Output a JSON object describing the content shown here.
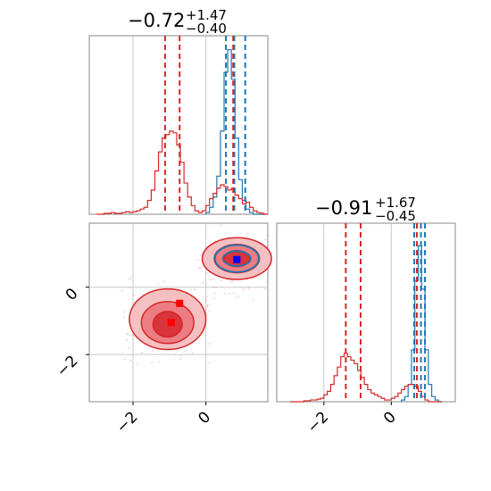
{
  "colors": {
    "red": "#d62728",
    "blue": "#1f77b4",
    "grid": "#c8c8c8",
    "axis": "#888888",
    "marker_blue": "#0000ff",
    "marker_red": "#ff0000"
  },
  "titles": {
    "p1": {
      "main": "−0.72",
      "sup": "+1.47",
      "sub": "−0.40"
    },
    "p2": {
      "main": "−0.91",
      "sup": "+1.67",
      "sub": "−0.45"
    }
  },
  "chart_data": {
    "type": "corner",
    "parameters": [
      {
        "ticks": [
          -2,
          0
        ],
        "tick_labels": [
          "−2",
          "0"
        ],
        "range": [
          -3.2,
          1.7
        ]
      },
      {
        "ticks": [
          -2,
          0
        ],
        "tick_labels": [
          "−2",
          "0"
        ],
        "range": [
          -3.4,
          1.9
        ]
      }
    ],
    "hist1": {
      "red_bins": [
        -3.0,
        -2.9,
        -2.8,
        -2.7,
        -2.6,
        -2.5,
        -2.4,
        -2.3,
        -2.2,
        -2.1,
        -2.0,
        -1.9,
        -1.8,
        -1.7,
        -1.6,
        -1.5,
        -1.4,
        -1.3,
        -1.2,
        -1.1,
        -1.0,
        -0.9,
        -0.8,
        -0.7,
        -0.6,
        -0.5,
        -0.4,
        -0.3,
        -0.2,
        -0.1,
        0.0,
        0.1,
        0.2,
        0.3,
        0.4,
        0.5,
        0.6,
        0.7,
        0.8,
        0.9,
        1.0,
        1.1,
        1.2,
        1.3,
        1.4,
        1.5,
        1.6
      ],
      "red_heights": [
        0,
        0,
        0.005,
        0.005,
        0.01,
        0.005,
        0.005,
        0.01,
        0.015,
        0.01,
        0.015,
        0.02,
        0.03,
        0.04,
        0.08,
        0.14,
        0.25,
        0.36,
        0.44,
        0.46,
        0.48,
        0.47,
        0.4,
        0.3,
        0.18,
        0.1,
        0.05,
        0.02,
        0.01,
        0.02,
        0.05,
        0.09,
        0.12,
        0.15,
        0.17,
        0.16,
        0.14,
        0.15,
        0.11,
        0.09,
        0.06,
        0.07,
        0.04,
        0.02,
        0.01,
        0.005,
        0
      ],
      "blue_bins": [
        0.0,
        0.1,
        0.2,
        0.3,
        0.4,
        0.5,
        0.6,
        0.7,
        0.8,
        0.9,
        1.0,
        1.1,
        1.2,
        1.3,
        1.4,
        1.5
      ],
      "blue_heights": [
        0.01,
        0.04,
        0.1,
        0.22,
        0.48,
        0.82,
        0.95,
        0.78,
        0.44,
        0.2,
        0.08,
        0.03,
        0.01,
        0,
        0,
        0
      ],
      "red_quantiles": [
        -1.12,
        -0.72,
        0.75
      ],
      "blue_quantiles": [
        0.55,
        0.78,
        1.08
      ]
    },
    "hist2": {
      "red_bins": [
        -3.0,
        -2.9,
        -2.8,
        -2.7,
        -2.6,
        -2.5,
        -2.4,
        -2.3,
        -2.2,
        -2.1,
        -2.0,
        -1.9,
        -1.8,
        -1.7,
        -1.6,
        -1.5,
        -1.4,
        -1.3,
        -1.2,
        -1.1,
        -1.0,
        -0.9,
        -0.8,
        -0.7,
        -0.6,
        -0.5,
        -0.4,
        -0.3,
        -0.2,
        -0.1,
        0.0,
        0.1,
        0.2,
        0.3,
        0.4,
        0.5,
        0.6,
        0.7,
        0.8,
        0.9,
        1.0,
        1.1,
        1.2,
        1.3,
        1.4
      ],
      "red_heights": [
        0,
        0,
        0,
        0,
        0.005,
        0.005,
        0.01,
        0.01,
        0.015,
        0.02,
        0.04,
        0.06,
        0.1,
        0.15,
        0.2,
        0.26,
        0.28,
        0.26,
        0.24,
        0.22,
        0.18,
        0.14,
        0.1,
        0.07,
        0.05,
        0.04,
        0.03,
        0.02,
        0.01,
        0.01,
        0.02,
        0.03,
        0.05,
        0.07,
        0.09,
        0.1,
        0.1,
        0.09,
        0.06,
        0.03,
        0.01,
        0,
        0,
        0,
        0
      ],
      "blue_bins": [
        0.3,
        0.4,
        0.5,
        0.6,
        0.7,
        0.8,
        0.9,
        1.0,
        1.1,
        1.2,
        1.3,
        1.4
      ],
      "blue_heights": [
        0.01,
        0.03,
        0.1,
        0.3,
        0.7,
        0.9,
        0.65,
        0.3,
        0.1,
        0.03,
        0.01,
        0
      ],
      "red_quantiles": [
        -1.35,
        -0.91,
        0.76
      ],
      "blue_quantiles": [
        0.68,
        0.88,
        1.0
      ]
    },
    "scatter": {
      "red_contours_outer": [
        {
          "cx": -1.05,
          "cy": -0.95,
          "rx": 1.05,
          "ry": 0.9
        },
        {
          "cx": 0.85,
          "cy": 0.85,
          "rx": 0.95,
          "ry": 0.62
        }
      ],
      "red_contours_mid": [
        {
          "cx": -1.05,
          "cy": -1.05,
          "rx": 0.72,
          "ry": 0.62
        },
        {
          "cx": 0.85,
          "cy": 0.85,
          "rx": 0.62,
          "ry": 0.42
        }
      ],
      "red_contours_inner": [
        {
          "cx": -1.05,
          "cy": -1.1,
          "rx": 0.4,
          "ry": 0.38
        },
        {
          "cx": 0.85,
          "cy": 0.85,
          "rx": 0.35,
          "ry": 0.24
        }
      ],
      "blue_contours": [
        {
          "cx": 0.85,
          "cy": 0.85,
          "rx": 0.6,
          "ry": 0.4
        },
        {
          "cx": 0.85,
          "cy": 0.85,
          "rx": 0.38,
          "ry": 0.22
        }
      ],
      "markers": [
        {
          "x": 0.85,
          "y": 0.82,
          "color": "blue"
        },
        {
          "x": -0.72,
          "y": -0.48,
          "color": "red"
        },
        {
          "x": -0.95,
          "y": -1.05,
          "color": "red"
        }
      ]
    }
  }
}
